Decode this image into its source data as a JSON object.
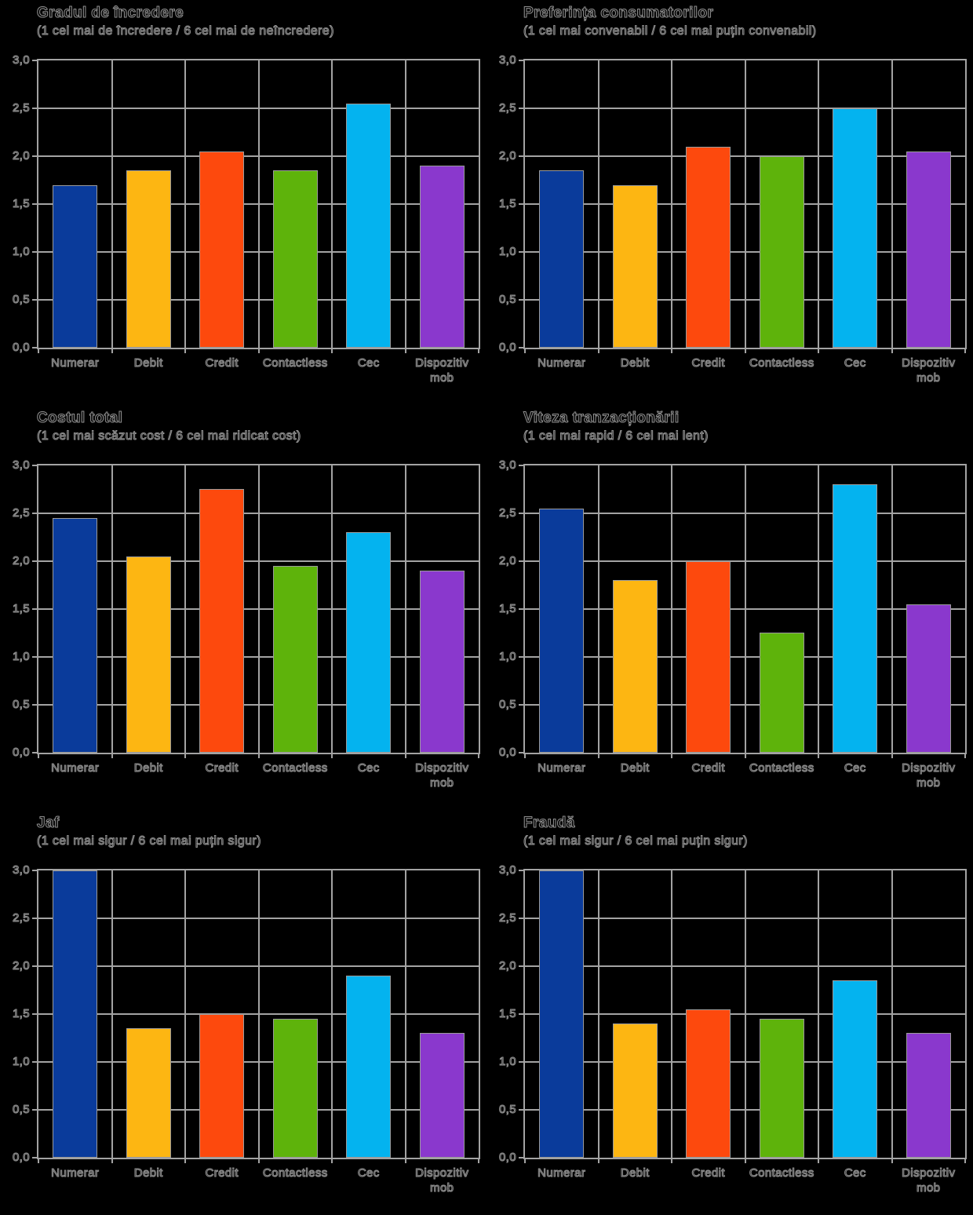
{
  "background": "#000000",
  "grid_color": "#a3a3a3",
  "text_outline_color": "#8e8e8e",
  "bar_colors": [
    "#0a3b9b",
    "#fdb612",
    "#fd490d",
    "#5eb30b",
    "#04b3ef",
    "#8a38cd"
  ],
  "chart_data": [
    {
      "type": "bar",
      "title": "Gradul de încredere",
      "subtitle": "(1 cel mai de încredere / 6 cel mai de neîncredere)",
      "categories": [
        "Numerar",
        "Debit",
        "Credit",
        "Contactless",
        "Cec",
        "Dispozitiv\nmob"
      ],
      "values": [
        1.7,
        1.85,
        2.05,
        1.85,
        2.55,
        1.9
      ],
      "ylim": [
        0,
        3
      ],
      "ytick_step": 0.5,
      "ytick_labels": [
        "0,0",
        "0,5",
        "1,0",
        "1,5",
        "2,0",
        "2,5",
        "3,0"
      ],
      "grid": true,
      "legend": false
    },
    {
      "type": "bar",
      "title": "Preferința consumatorilor",
      "subtitle": "(1 cel mai convenabil / 6 cel mai puțin convenabil)",
      "categories": [
        "Numerar",
        "Debit",
        "Credit",
        "Contactless",
        "Cec",
        "Dispozitiv\nmob"
      ],
      "values": [
        1.85,
        1.7,
        2.1,
        2.0,
        2.5,
        2.05
      ],
      "ylim": [
        0,
        3
      ],
      "ytick_step": 0.5,
      "ytick_labels": [
        "0,0",
        "0,5",
        "1,0",
        "1,5",
        "2,0",
        "2,5",
        "3,0"
      ],
      "grid": true,
      "legend": false
    },
    {
      "type": "bar",
      "title": "Costul total",
      "subtitle": "(1 cel mai scăzut cost / 6 cel mai ridicat cost)",
      "categories": [
        "Numerar",
        "Debit",
        "Credit",
        "Contactless",
        "Cec",
        "Dispozitiv\nmob"
      ],
      "values": [
        2.45,
        2.05,
        2.75,
        1.95,
        2.3,
        1.9
      ],
      "ylim": [
        0,
        3
      ],
      "ytick_step": 0.5,
      "ytick_labels": [
        "0,0",
        "0,5",
        "1,0",
        "1,5",
        "2,0",
        "2,5",
        "3,0"
      ],
      "grid": true,
      "legend": false
    },
    {
      "type": "bar",
      "title": "Viteza tranzacționării",
      "subtitle": "(1 cel mai rapid / 6 cel mai lent)",
      "categories": [
        "Numerar",
        "Debit",
        "Credit",
        "Contactless",
        "Cec",
        "Dispozitiv\nmob"
      ],
      "values": [
        2.55,
        1.8,
        2.0,
        1.25,
        2.8,
        1.55
      ],
      "ylim": [
        0,
        3
      ],
      "ytick_step": 0.5,
      "ytick_labels": [
        "0,0",
        "0,5",
        "1,0",
        "1,5",
        "2,0",
        "2,5",
        "3,0"
      ],
      "grid": true,
      "legend": false
    },
    {
      "type": "bar",
      "title": "Jaf",
      "subtitle": "(1 cel mai sigur / 6 cel mai puțin sigur)",
      "categories": [
        "Numerar",
        "Debit",
        "Credit",
        "Contactless",
        "Cec",
        "Dispozitiv\nmob"
      ],
      "values": [
        3.0,
        1.35,
        1.5,
        1.45,
        1.9,
        1.3
      ],
      "ylim": [
        0,
        3
      ],
      "ytick_step": 0.5,
      "ytick_labels": [
        "0,0",
        "0,5",
        "1,0",
        "1,5",
        "2,0",
        "2,5",
        "3,0"
      ],
      "grid": true,
      "legend": false
    },
    {
      "type": "bar",
      "title": "Fraudă",
      "subtitle": "(1 cel mai sigur / 6 cel mai puțin sigur)",
      "categories": [
        "Numerar",
        "Debit",
        "Credit",
        "Contactless",
        "Cec",
        "Dispozitiv\nmob"
      ],
      "values": [
        3.0,
        1.4,
        1.55,
        1.45,
        1.85,
        1.3
      ],
      "ylim": [
        0,
        3
      ],
      "ytick_step": 0.5,
      "ytick_labels": [
        "0,0",
        "0,5",
        "1,0",
        "1,5",
        "2,0",
        "2,5",
        "3,0"
      ],
      "grid": true,
      "legend": false
    }
  ]
}
